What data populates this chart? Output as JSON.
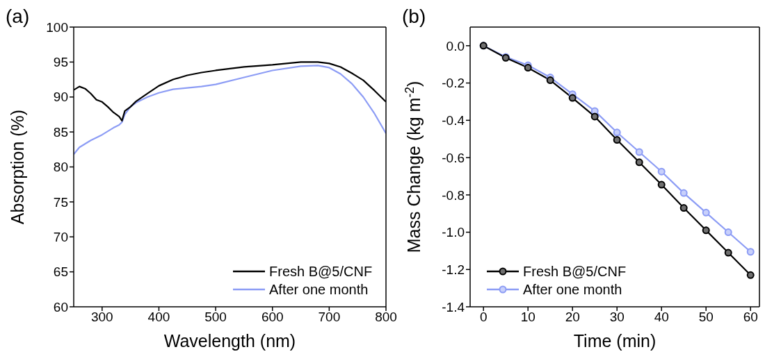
{
  "chart_data": [
    {
      "type": "line",
      "xlabel": "Wavelength (nm)",
      "ylabel": "Absorption (%)",
      "annotations": [
        "(a)"
      ],
      "x": [
        250,
        260,
        270,
        280,
        290,
        300,
        310,
        320,
        330,
        335,
        340,
        350,
        360,
        380,
        400,
        425,
        450,
        475,
        500,
        550,
        600,
        650,
        680,
        700,
        720,
        740,
        760,
        780,
        800
      ],
      "series": [
        {
          "name": "Fresh B@5/CNF",
          "color": "#000000",
          "values": [
            91.0,
            91.5,
            91.2,
            90.5,
            89.6,
            89.3,
            88.6,
            87.8,
            87.2,
            86.6,
            88.0,
            88.6,
            89.4,
            90.5,
            91.6,
            92.5,
            93.1,
            93.5,
            93.8,
            94.3,
            94.6,
            95.0,
            95.0,
            94.8,
            94.3,
            93.4,
            92.4,
            90.9,
            89.3
          ]
        },
        {
          "name": "After one month",
          "color": "#8c9cf5",
          "values": [
            81.8,
            82.8,
            83.3,
            83.8,
            84.2,
            84.6,
            85.1,
            85.6,
            86.0,
            86.4,
            87.5,
            88.6,
            89.2,
            90.0,
            90.6,
            91.1,
            91.3,
            91.5,
            91.8,
            92.8,
            93.8,
            94.4,
            94.5,
            94.2,
            93.3,
            91.9,
            90.0,
            87.6,
            84.8
          ]
        }
      ],
      "xlim": [
        250,
        800
      ],
      "xticks": [
        300,
        400,
        500,
        600,
        700,
        800
      ],
      "ylim": [
        60,
        100
      ],
      "yticks": [
        60,
        65,
        70,
        75,
        80,
        85,
        90,
        95,
        100
      ],
      "grid": false,
      "legend": "bottom right",
      "marker": "none",
      "line_style": "solid"
    },
    {
      "type": "line",
      "xlabel": "Time (min)",
      "ylabel": "Mass Change (kg m$^{-2}$)",
      "annotations": [
        "(b)"
      ],
      "x": [
        0,
        5,
        10,
        15,
        20,
        25,
        30,
        35,
        40,
        45,
        50,
        55,
        60
      ],
      "series": [
        {
          "name": "Fresh B@5/CNF",
          "color": "#000000",
          "values": [
            0,
            -0.065,
            -0.118,
            -0.185,
            -0.28,
            -0.38,
            -0.505,
            -0.625,
            -0.745,
            -0.87,
            -0.99,
            -1.11,
            -1.23
          ]
        },
        {
          "name": "After one month",
          "color": "#8c9cf5",
          "values": [
            0,
            -0.06,
            -0.105,
            -0.17,
            -0.26,
            -0.35,
            -0.465,
            -0.57,
            -0.675,
            -0.79,
            -0.895,
            -1.0,
            -1.105
          ]
        }
      ],
      "xlim": [
        -3,
        62
      ],
      "xticks": [
        0,
        10,
        20,
        30,
        40,
        50,
        60
      ],
      "ylim": [
        -1.4,
        0.1
      ],
      "yticks": [
        {
          "value": -1.4,
          "label": "-1.4"
        },
        {
          "value": -1.2,
          "label": "-1.2"
        },
        {
          "value": -1.0,
          "label": "-1.0"
        },
        {
          "value": -0.8,
          "label": "-0.8"
        },
        {
          "value": -0.6,
          "label": "-0.6"
        },
        {
          "value": -0.4,
          "label": "-0.4"
        },
        {
          "value": -0.2,
          "label": "-0.2"
        },
        {
          "value": 0,
          "label": "0.0"
        }
      ],
      "grid": false,
      "legend": "bottom left",
      "marker": "circle",
      "line_style": "solid"
    }
  ]
}
